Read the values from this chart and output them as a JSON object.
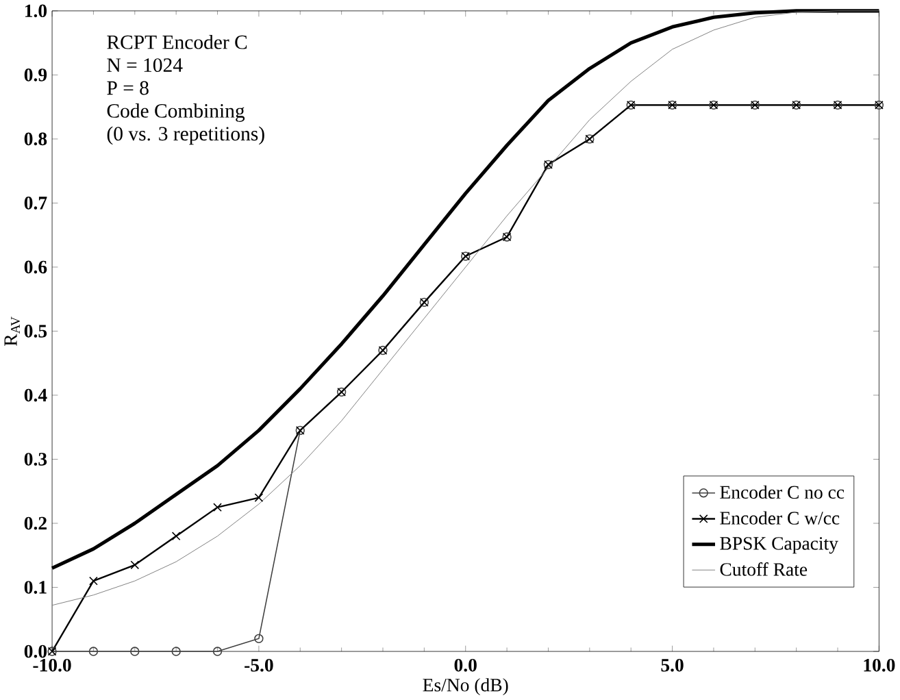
{
  "chart_data": {
    "type": "line",
    "xlabel": "Es/No (dB)",
    "ylabel": "R$_{AV}$",
    "annotations": [
      "RCPT Encoder C",
      "N = 1024",
      "P = 8",
      "Code Combining",
      "(0 vs. 3 repetitions)"
    ],
    "x": [
      -10,
      -9,
      -8,
      -7,
      -6,
      -5,
      -4,
      -3,
      -2,
      -1,
      0,
      1,
      2,
      3,
      4,
      5,
      6,
      7,
      8,
      9,
      10
    ],
    "series": [
      {
        "name": "Encoder C no cc",
        "color": "#404040",
        "marker": "circle",
        "values": [
          0,
          0,
          0,
          0,
          0,
          0.02,
          0.345,
          0.405,
          0.47,
          0.545,
          0.617,
          0.647,
          0.76,
          0.8,
          0.853,
          0.853,
          0.853,
          0.853,
          0.853,
          0.853,
          0.853
        ]
      },
      {
        "name": "Encoder C w/cc",
        "color": "#000000",
        "marker": "cross",
        "values": [
          0,
          0.11,
          0.135,
          0.18,
          0.225,
          0.24,
          0.345,
          0.405,
          0.47,
          0.545,
          0.617,
          0.647,
          0.76,
          0.8,
          0.853,
          0.853,
          0.853,
          0.853,
          0.853,
          0.853,
          0.853
        ]
      },
      {
        "name": "BPSK Capacity",
        "color": "#000000",
        "marker": "none",
        "values": [
          0.13,
          0.16,
          0.2,
          0.245,
          0.29,
          0.345,
          0.41,
          0.48,
          0.555,
          0.635,
          0.715,
          0.79,
          0.86,
          0.91,
          0.95,
          0.975,
          0.99,
          0.997,
          1.0,
          1.0,
          1.0
        ]
      },
      {
        "name": "Cutoff Rate",
        "color": "#808080",
        "marker": "none",
        "values": [
          0.072,
          0.088,
          0.11,
          0.14,
          0.18,
          0.23,
          0.29,
          0.36,
          0.44,
          0.52,
          0.6,
          0.68,
          0.755,
          0.83,
          0.89,
          0.94,
          0.97,
          0.99,
          0.998,
          1.0,
          1.0
        ]
      }
    ],
    "xlim": [
      -10,
      10
    ],
    "ylim": [
      0,
      1
    ],
    "xticks": [
      {
        "value": -10,
        "label": "-10.0"
      },
      {
        "value": -5,
        "label": "-5.0"
      },
      {
        "value": 0,
        "label": "0.0"
      },
      {
        "value": 5,
        "label": "5.0"
      },
      {
        "value": 10,
        "label": "10.0"
      }
    ],
    "yticks": [
      {
        "value": 0,
        "label": "0.0"
      },
      {
        "value": 0.1,
        "label": "0.1"
      },
      {
        "value": 0.2,
        "label": "0.2"
      },
      {
        "value": 0.3,
        "label": "0.3"
      },
      {
        "value": 0.4,
        "label": "0.4"
      },
      {
        "value": 0.5,
        "label": "0.5"
      },
      {
        "value": 0.6,
        "label": "0.6"
      },
      {
        "value": 0.7,
        "label": "0.7"
      },
      {
        "value": 0.8,
        "label": "0.8"
      },
      {
        "value": 0.9,
        "label": "0.9"
      },
      {
        "value": 1,
        "label": "1.0"
      }
    ],
    "grid": false,
    "legend": "bottom right",
    "line_style": "solid"
  }
}
